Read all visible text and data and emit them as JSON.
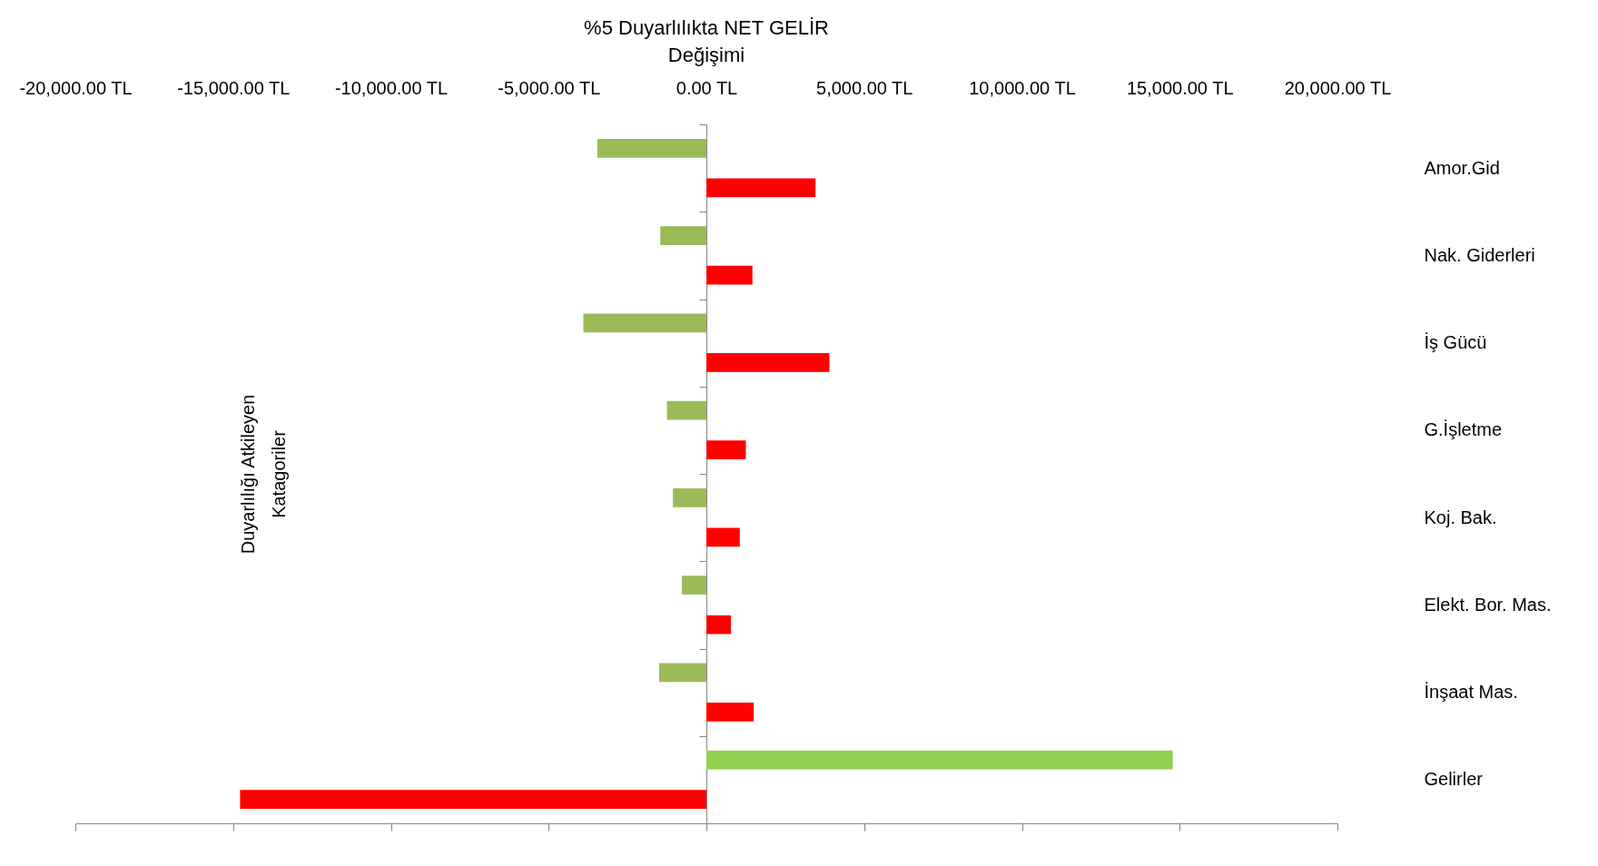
{
  "chart_data": {
    "type": "bar",
    "orientation": "horizontal",
    "title": "%5 Duyarlılıkta NET GELİR Değişimi",
    "ylabel": "Duyarlılığı Atkileyen Katagoriler",
    "categories": [
      "Amor.Gid",
      "Nak. Giderleri",
      "İş Gücü",
      "G.İşletme",
      "Koj. Bak.",
      "Elekt. Bor. Mas.",
      "İnşaat Mas.",
      "Gelirler"
    ],
    "series": [
      {
        "colors": [
          "#9bbb59",
          "#9bbb59",
          "#9bbb59",
          "#9bbb59",
          "#9bbb59",
          "#9bbb59",
          "#9bbb59",
          "#92d050"
        ],
        "values": [
          -3460,
          -1460,
          -3900,
          -1250,
          -1060,
          -780,
          -1500,
          14780
        ]
      },
      {
        "color": "#ff0000",
        "values": [
          3460,
          1460,
          3900,
          1250,
          1060,
          780,
          1500,
          -14780
        ]
      }
    ],
    "xlim": [
      -20000,
      20000
    ],
    "xticks": [
      {
        "value": -20000,
        "label": "-20,000.00 TL"
      },
      {
        "value": -15000,
        "label": "-15,000.00 TL"
      },
      {
        "value": -10000,
        "label": "-10,000.00 TL"
      },
      {
        "value": -5000,
        "label": "-5,000.00 TL"
      },
      {
        "value": 0,
        "label": "0.00 TL"
      },
      {
        "value": 5000,
        "label": "5,000.00 TL"
      },
      {
        "value": 10000,
        "label": "10,000.00 TL"
      },
      {
        "value": 15000,
        "label": "15,000.00 TL"
      },
      {
        "value": 20000,
        "label": "20,000.00 TL"
      }
    ]
  }
}
